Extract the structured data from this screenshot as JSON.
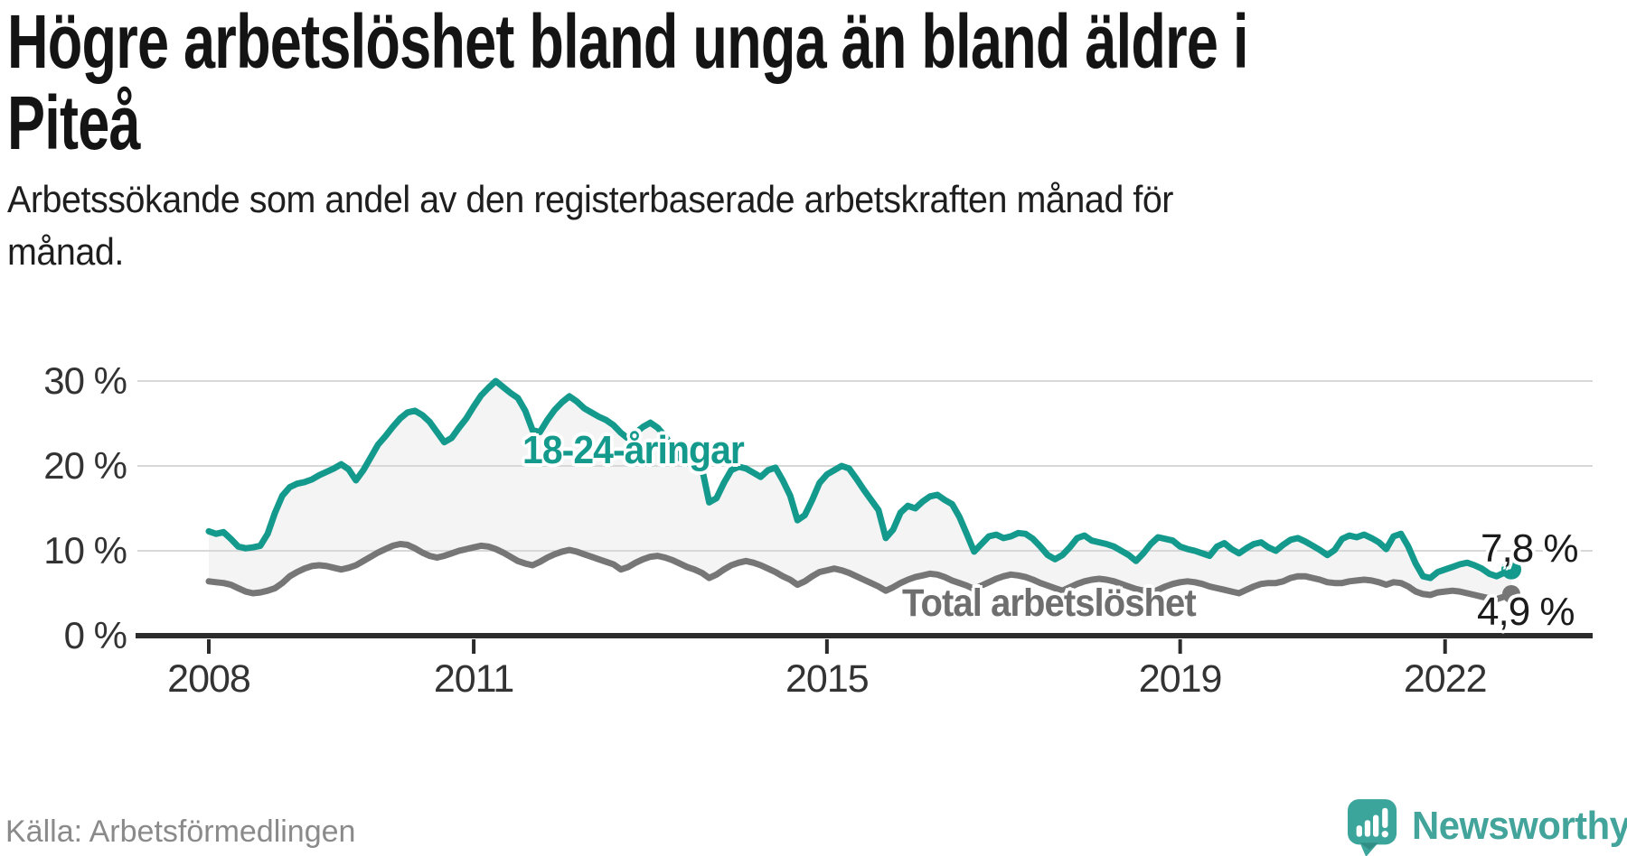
{
  "header": {
    "title_line1": "Högre arbetslöshet bland unga än bland äldre i",
    "title_line2": "Piteå",
    "subtitle_line1": "Arbetssökande som andel av den registerbaserade arbetskraften månad för",
    "subtitle_line2": "månad."
  },
  "footer": {
    "source": "Källa: Arbetsförmedlingen",
    "brand": "Newsworthy"
  },
  "colors": {
    "youth_line": "#149a8d",
    "total_line": "#767676",
    "total_label": "#6e6e6e",
    "grid": "#d8d8d8",
    "axis": "#2b2b2b",
    "band_fill": "#f4f4f4",
    "brand_teal": "#3ba59c",
    "text_dark": "#1b1b1b"
  },
  "chart_data": {
    "type": "line",
    "title": "Högre arbetslöshet bland unga än bland äldre i Piteå",
    "subtitle": "Arbetssökande som andel av den registerbaserade arbetskraften månad för månad.",
    "xlabel": "",
    "ylabel": "",
    "frequency": "monthly",
    "x_range": [
      "2008-01",
      "2022-10"
    ],
    "x_tick_years": [
      2008,
      2011,
      2015,
      2019,
      2022
    ],
    "x_tick_labels": [
      "2008",
      "2011",
      "2015",
      "2019",
      "2022"
    ],
    "y_tick_values": [
      30,
      20,
      10,
      0
    ],
    "y_tick_labels": [
      "30 %",
      "20 %",
      "10 %",
      "0 %"
    ],
    "ylim": [
      0,
      32
    ],
    "grid": "horizontal",
    "legend_position": "inline-annotations",
    "band_fill_between_series": true,
    "series": [
      {
        "name": "18-24-åringar",
        "color": "#149a8d",
        "end_label": "7,8 %",
        "end_value": 7.8,
        "values": [
          12.3,
          12.0,
          12.2,
          11.4,
          10.5,
          10.3,
          10.4,
          10.6,
          12.0,
          14.5,
          16.5,
          17.5,
          17.9,
          18.1,
          18.4,
          18.9,
          19.3,
          19.7,
          20.2,
          19.6,
          18.3,
          19.5,
          21.0,
          22.5,
          23.5,
          24.6,
          25.6,
          26.3,
          26.5,
          26.0,
          25.2,
          24.0,
          22.8,
          23.3,
          24.5,
          25.6,
          27.0,
          28.3,
          29.2,
          30.0,
          29.3,
          28.6,
          28.0,
          26.5,
          24.2,
          24.0,
          25.4,
          26.6,
          27.5,
          28.2,
          27.6,
          26.8,
          26.3,
          25.8,
          25.4,
          24.8,
          23.9,
          23.2,
          23.9,
          24.6,
          25.1,
          24.5,
          23.5,
          22.3,
          20.9,
          20.3,
          20.4,
          19.8,
          15.7,
          16.2,
          18.0,
          19.5,
          19.9,
          19.7,
          19.2,
          18.7,
          19.5,
          19.8,
          18.3,
          16.5,
          13.6,
          14.2,
          16.0,
          18.0,
          19.0,
          19.5,
          20.0,
          19.7,
          18.5,
          17.2,
          16.0,
          14.8,
          11.5,
          12.5,
          14.5,
          15.3,
          15.0,
          15.8,
          16.4,
          16.6,
          16.0,
          15.5,
          14.0,
          12.0,
          9.9,
          10.8,
          11.7,
          11.9,
          11.5,
          11.7,
          12.1,
          12.0,
          11.4,
          10.5,
          9.5,
          9.0,
          9.5,
          10.4,
          11.5,
          11.8,
          11.2,
          11.0,
          10.8,
          10.5,
          10.0,
          9.5,
          8.8,
          9.7,
          10.8,
          11.6,
          11.4,
          11.2,
          10.5,
          10.2,
          10.0,
          9.7,
          9.4,
          10.5,
          10.9,
          10.2,
          9.7,
          10.3,
          10.8,
          11.0,
          10.4,
          10.0,
          10.7,
          11.3,
          11.5,
          11.1,
          10.6,
          10.1,
          9.5,
          10.1,
          11.4,
          11.8,
          11.6,
          11.9,
          11.5,
          11.0,
          10.2,
          11.7,
          12.0,
          10.5,
          8.5,
          7.0,
          6.8,
          7.5,
          7.8,
          8.1,
          8.4,
          8.6,
          8.3,
          7.9,
          7.3,
          7.0,
          7.4,
          7.8
        ]
      },
      {
        "name": "Total arbetslöshet",
        "color": "#767676",
        "end_label": "4,9 %",
        "end_value": 4.9,
        "values": [
          6.4,
          6.3,
          6.2,
          6.0,
          5.6,
          5.2,
          5.0,
          5.1,
          5.3,
          5.6,
          6.2,
          7.0,
          7.5,
          7.9,
          8.2,
          8.3,
          8.2,
          8.0,
          7.8,
          8.0,
          8.3,
          8.8,
          9.3,
          9.8,
          10.2,
          10.6,
          10.8,
          10.7,
          10.3,
          9.8,
          9.4,
          9.2,
          9.4,
          9.7,
          10.0,
          10.2,
          10.4,
          10.6,
          10.5,
          10.2,
          9.8,
          9.3,
          8.8,
          8.5,
          8.3,
          8.7,
          9.2,
          9.6,
          9.9,
          10.1,
          9.9,
          9.6,
          9.3,
          9.0,
          8.7,
          8.4,
          7.8,
          8.1,
          8.6,
          9.0,
          9.3,
          9.4,
          9.2,
          8.9,
          8.5,
          8.1,
          7.8,
          7.4,
          6.8,
          7.2,
          7.8,
          8.3,
          8.6,
          8.8,
          8.6,
          8.3,
          7.9,
          7.5,
          7.0,
          6.6,
          6.0,
          6.4,
          7.0,
          7.5,
          7.7,
          7.9,
          7.7,
          7.4,
          7.0,
          6.6,
          6.2,
          5.8,
          5.3,
          5.7,
          6.2,
          6.6,
          6.9,
          7.1,
          7.3,
          7.2,
          6.9,
          6.5,
          6.2,
          5.9,
          5.5,
          5.9,
          6.3,
          6.7,
          7.0,
          7.2,
          7.1,
          6.9,
          6.6,
          6.2,
          5.9,
          5.6,
          5.3,
          5.7,
          6.1,
          6.4,
          6.6,
          6.7,
          6.6,
          6.4,
          6.1,
          5.8,
          5.5,
          5.3,
          5.0,
          5.4,
          5.8,
          6.1,
          6.3,
          6.4,
          6.3,
          6.1,
          5.8,
          5.6,
          5.4,
          5.2,
          5.0,
          5.4,
          5.8,
          6.1,
          6.2,
          6.2,
          6.4,
          6.8,
          7.0,
          7.0,
          6.8,
          6.6,
          6.3,
          6.2,
          6.2,
          6.4,
          6.5,
          6.6,
          6.5,
          6.3,
          6.0,
          6.3,
          6.2,
          5.8,
          5.2,
          4.9,
          4.8,
          5.1,
          5.2,
          5.3,
          5.2,
          5.0,
          4.8,
          4.6,
          4.4,
          4.3,
          4.6,
          4.9
        ]
      }
    ]
  }
}
